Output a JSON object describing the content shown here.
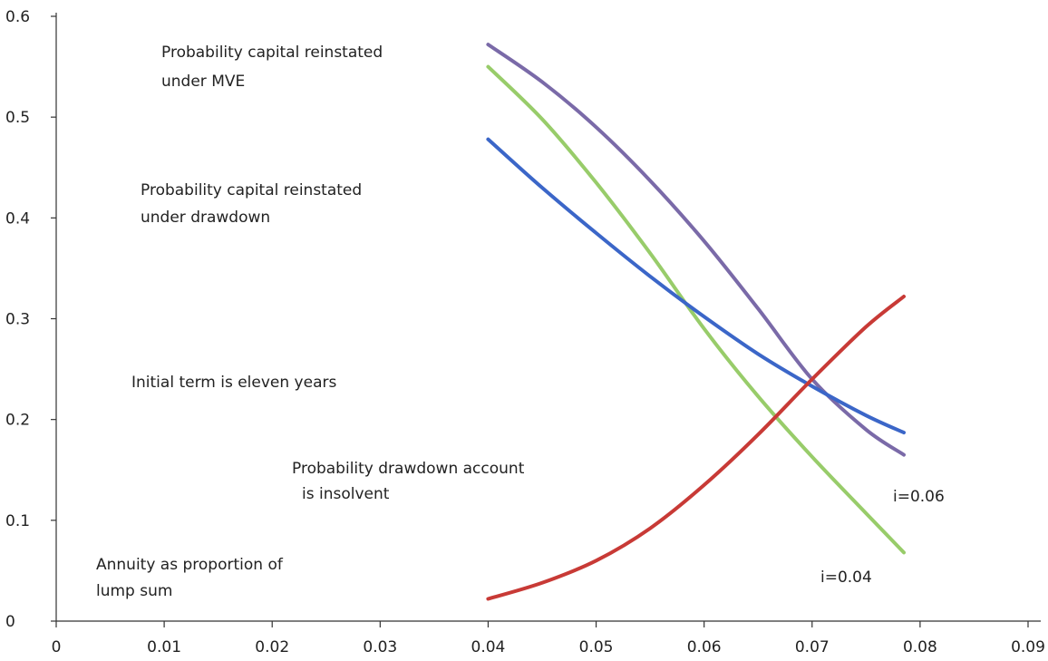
{
  "chart_data": {
    "type": "line",
    "title": "",
    "xlabel": "",
    "ylabel": "",
    "xlim": [
      0,
      0.09
    ],
    "ylim": [
      0,
      0.6
    ],
    "grid": false,
    "x_ticks": [
      "0",
      "0.01",
      "0.02",
      "0.03",
      "0.04",
      "0.05",
      "0.06",
      "0.07",
      "0.08",
      "0.09"
    ],
    "y_ticks": [
      "0",
      "0.1",
      "0.2",
      "0.3",
      "0.4",
      "0.5",
      "0.6"
    ],
    "x": [
      0.04,
      0.045,
      0.05,
      0.055,
      0.06,
      0.065,
      0.07,
      0.075,
      0.0785
    ],
    "series": [
      {
        "color": "#7a6aa8",
        "values": [
          0.572,
          0.535,
          0.49,
          0.437,
          0.377,
          0.31,
          0.24,
          0.19,
          0.165
        ]
      },
      {
        "color": "#98cc6a",
        "values": [
          0.55,
          0.498,
          0.435,
          0.365,
          0.29,
          0.223,
          0.163,
          0.107,
          0.068
        ]
      },
      {
        "color": "#3b66c8",
        "values": [
          0.478,
          0.43,
          0.385,
          0.342,
          0.302,
          0.265,
          0.233,
          0.204,
          0.187
        ]
      },
      {
        "color": "#c83a36",
        "values": [
          0.022,
          0.038,
          0.06,
          0.092,
          0.135,
          0.185,
          0.24,
          0.292,
          0.322
        ]
      }
    ],
    "annotations": [
      {
        "id": "mve",
        "lines": [
          "Probability capital reinstated",
          "under MVE"
        ]
      },
      {
        "id": "drawdown",
        "lines": [
          "Probability capital reinstated",
          "under drawdown"
        ]
      },
      {
        "id": "term",
        "lines": [
          "Initial term is eleven years"
        ]
      },
      {
        "id": "insolvent",
        "lines": [
          "Probability drawdown account",
          "is insolvent"
        ]
      },
      {
        "id": "annuity",
        "lines": [
          "Annuity as proportion of",
          "lump sum"
        ]
      },
      {
        "id": "i006",
        "lines": [
          "i=0.06"
        ]
      },
      {
        "id": "i004",
        "lines": [
          "i=0.04"
        ]
      }
    ]
  }
}
